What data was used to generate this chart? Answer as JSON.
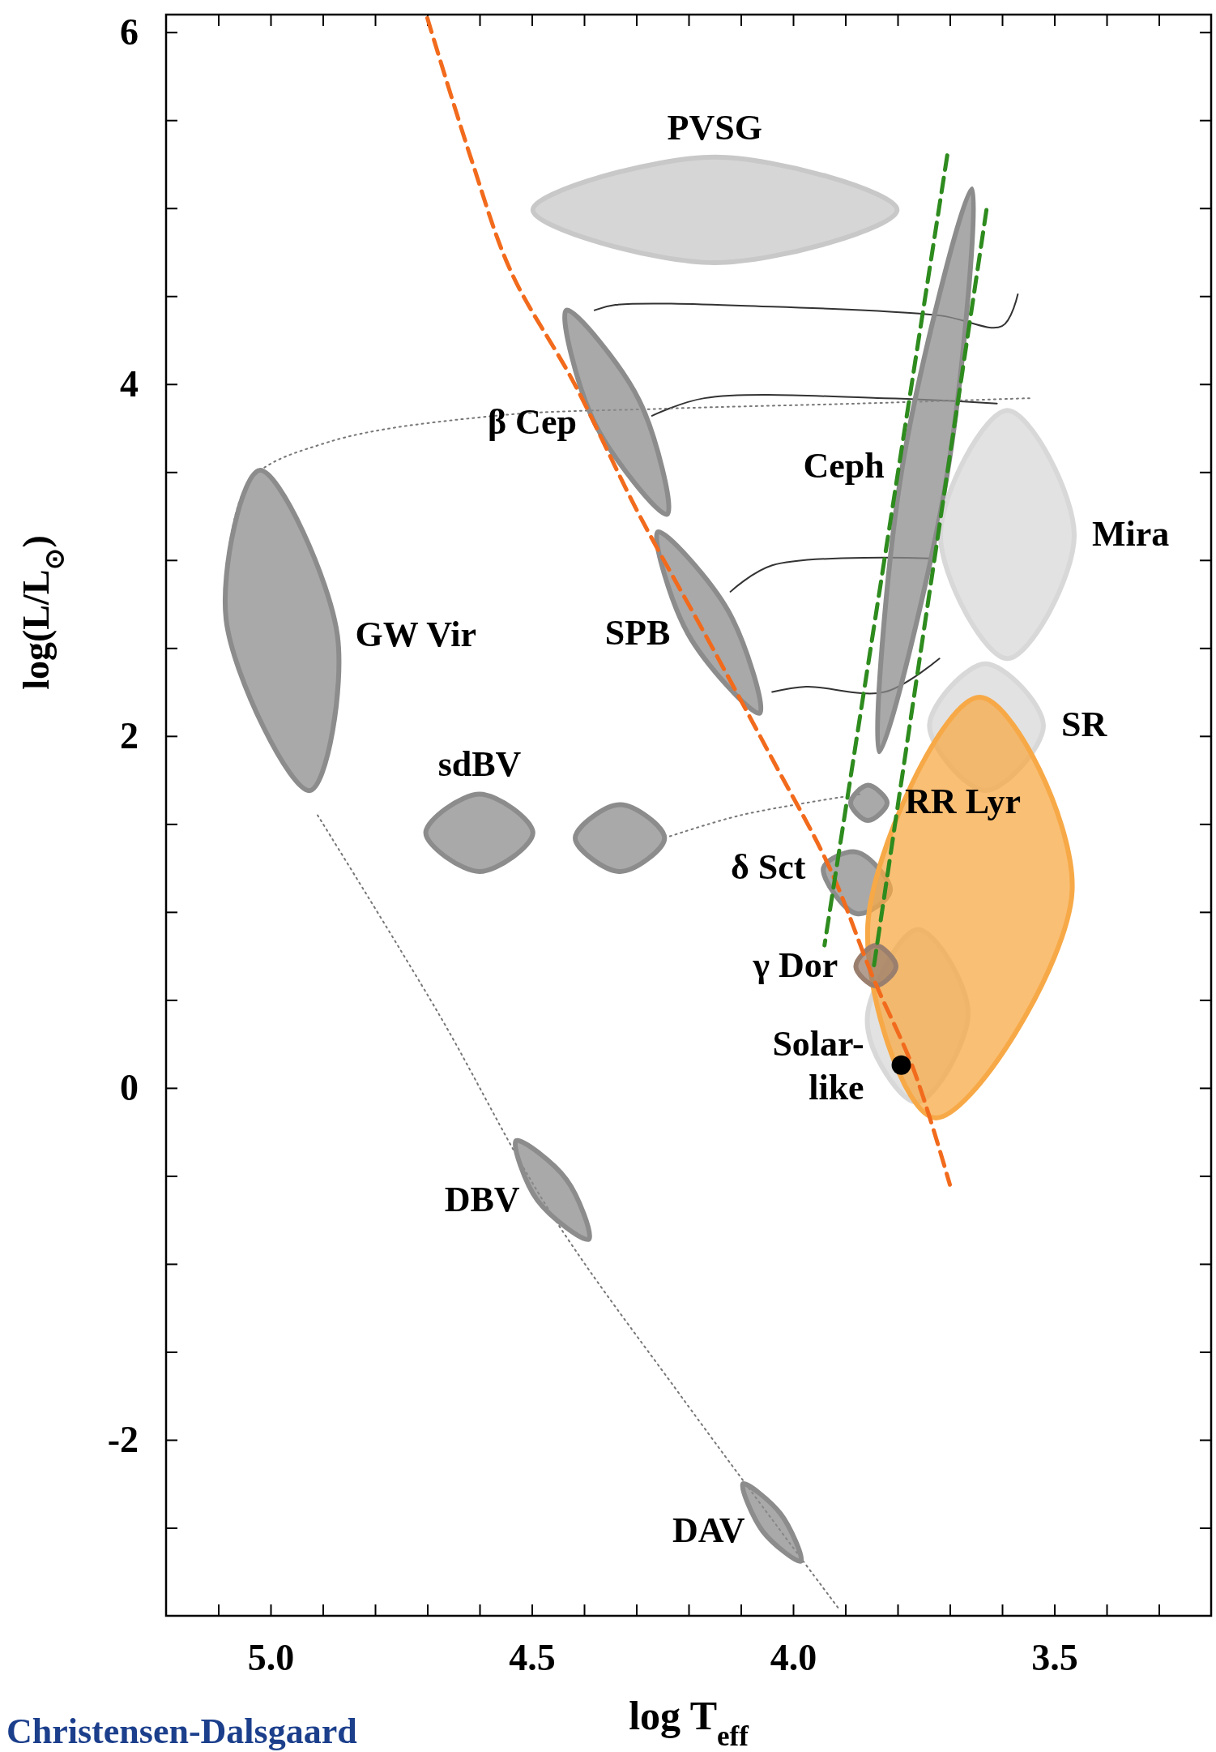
{
  "chart_data": {
    "type": "line",
    "xlabel": "log T$_{eff}$",
    "ylabel": "log(L/L$_{⊙}$)",
    "xlim": [
      5.2,
      3.2
    ],
    "ylim": [
      -3,
      6.1
    ],
    "xticks": [
      {
        "value": 5.1,
        "label": null
      },
      {
        "value": 5.0,
        "label": "5.0"
      },
      {
        "value": 4.9,
        "label": null
      },
      {
        "value": 4.8,
        "label": null
      },
      {
        "value": 4.7,
        "label": null
      },
      {
        "value": 4.6,
        "label": null
      },
      {
        "value": 4.5,
        "label": "4.5"
      },
      {
        "value": 4.4,
        "label": null
      },
      {
        "value": 4.3,
        "label": null
      },
      {
        "value": 4.2,
        "label": null
      },
      {
        "value": 4.1,
        "label": null
      },
      {
        "value": 4.0,
        "label": "4.0"
      },
      {
        "value": 3.9,
        "label": null
      },
      {
        "value": 3.8,
        "label": null
      },
      {
        "value": 3.7,
        "label": null
      },
      {
        "value": 3.6,
        "label": null
      },
      {
        "value": 3.5,
        "label": "3.5"
      },
      {
        "value": 3.4,
        "label": null
      },
      {
        "value": 3.3,
        "label": null
      }
    ],
    "yticks": [
      {
        "value": -2.5,
        "label": null
      },
      -2,
      {
        "value": -1.5,
        "label": null
      },
      {
        "value": -1,
        "label": null
      },
      {
        "value": -0.5,
        "label": null
      },
      0,
      {
        "value": 0.5,
        "label": null
      },
      {
        "value": 1,
        "label": null
      },
      {
        "value": 1.5,
        "label": null
      },
      2,
      {
        "value": 2.5,
        "label": null
      },
      {
        "value": 3,
        "label": null
      },
      {
        "value": 3.5,
        "label": null
      },
      4,
      {
        "value": 4.5,
        "label": null
      },
      {
        "value": 5,
        "label": null
      },
      {
        "value": 5.5,
        "label": null
      },
      6
    ],
    "series": [
      {
        "color": "#333333",
        "line_style": "solid",
        "x": [
          4.38,
          4.34,
          4.04,
          3.72,
          3.6,
          3.57
        ],
        "values": [
          4.42,
          4.45,
          4.44,
          4.39,
          4.33,
          4.51
        ]
      },
      {
        "color": "#333333",
        "line_style": "solid",
        "x": [
          4.27,
          4.17,
          3.825,
          3.61
        ],
        "values": [
          3.82,
          3.92,
          3.92,
          3.89
        ]
      },
      {
        "color": "#333333",
        "line_style": "solid",
        "x": [
          4.12,
          4.04,
          3.74
        ],
        "values": [
          2.82,
          2.97,
          3.01
        ]
      },
      {
        "color": "#333333",
        "line_style": "solid",
        "x": [
          4.04,
          3.975,
          3.825,
          3.72
        ],
        "values": [
          2.25,
          2.28,
          2.25,
          2.44
        ]
      },
      {
        "color": "#777777",
        "line_style": "dotted",
        "x": [
          5.085,
          5.04,
          4.89,
          4.57,
          4.25,
          3.87,
          3.547
        ],
        "values": [
          2.94,
          3.45,
          3.67,
          3.82,
          3.86,
          3.89,
          3.92
        ]
      },
      {
        "color": "#777777",
        "line_style": "dotted",
        "x": [
          4.91,
          4.68,
          4.466,
          4.21,
          3.91
        ],
        "values": [
          1.55,
          0.43,
          -0.7,
          -1.77,
          -2.97
        ]
      },
      {
        "color": "#777777",
        "line_style": "dotted",
        "x": [
          4.246,
          4.1,
          3.87
        ],
        "values": [
          1.42,
          1.55,
          1.67
        ]
      },
      {
        "type": "area",
        "color": "#c8c8c8",
        "x": [
          4.498,
          4.15,
          3.801,
          4.15
        ],
        "values": [
          4.99,
          5.29,
          4.99,
          4.69
        ]
      },
      {
        "type": "area",
        "color": "#8c8c8c",
        "x": [
          4.434,
          4.295,
          4.241,
          4.38
        ],
        "values": [
          4.42,
          3.91,
          3.26,
          3.78
        ]
      },
      {
        "type": "area",
        "color": "#8c8c8c",
        "x": [
          4.259,
          4.124,
          4.064,
          4.201
        ],
        "values": [
          3.16,
          2.71,
          2.13,
          2.58
        ]
      },
      {
        "type": "area",
        "color": "#8c8c8c",
        "x": [
          3.658,
          3.705,
          3.835,
          3.791
        ],
        "values": [
          5.11,
          3.49,
          1.91,
          3.53
        ]
      },
      {
        "type": "area",
        "color": "#d8d8d8",
        "x": [
          3.59,
          3.462,
          3.59,
          3.718
        ],
        "values": [
          3.85,
          3.14,
          2.44,
          3.14
        ]
      },
      {
        "type": "area",
        "color": "#d8d8d8",
        "x": [
          3.739,
          3.632,
          3.521,
          3.632
        ],
        "values": [
          2.06,
          2.41,
          2.06,
          1.69
        ]
      },
      {
        "type": "area",
        "color": "#8c8c8c",
        "x": [
          5.021,
          4.872,
          4.925,
          5.085
        ],
        "values": [
          3.51,
          2.57,
          1.69,
          2.66
        ]
      },
      {
        "type": "area",
        "color": "#8c8c8c",
        "x": [
          4.703,
          4.6,
          4.498,
          4.6
        ],
        "values": [
          1.45,
          1.67,
          1.45,
          1.23
        ]
      },
      {
        "type": "area",
        "color": "#8c8c8c",
        "x": [
          4.417,
          4.331,
          4.246,
          4.331
        ],
        "values": [
          1.42,
          1.61,
          1.42,
          1.23
        ]
      },
      {
        "type": "area",
        "color": "#8c8c8c",
        "x": [
          3.942,
          3.878,
          3.814,
          3.878
        ],
        "values": [
          1.25,
          1.34,
          1.12,
          0.99
        ]
      },
      {
        "type": "area",
        "color": "#d8d8d8",
        "x": [
          3.857,
          3.761,
          3.665,
          3.761,
          3.83
        ],
        "values": [
          0.43,
          0.9,
          0.43,
          -0.08,
          0.12
        ]
      },
      {
        "type": "area",
        "color": "#8c8c8c",
        "x": [
          4.53,
          4.434,
          4.391,
          4.489
        ],
        "values": [
          -0.3,
          -0.52,
          -0.86,
          -0.64
        ]
      },
      {
        "type": "area",
        "color": "#8c8c8c",
        "x": [
          4.096,
          4.024,
          3.985,
          4.058
        ],
        "values": [
          -2.25,
          -2.42,
          -2.69,
          -2.52
        ]
      },
      {
        "type": "area",
        "color": "#8c8c8c",
        "x": [
          3.89,
          3.857,
          3.82,
          3.857
        ],
        "values": [
          1.62,
          1.72,
          1.62,
          1.52
        ]
      },
      {
        "type": "area",
        "color": "#f7a947",
        "x": [
          3.643,
          3.466,
          3.729,
          3.857
        ],
        "values": [
          2.22,
          1.12,
          -0.17,
          0.93
        ]
      },
      {
        "type": "area",
        "color": "#9a7f6e",
        "x": [
          3.88,
          3.842,
          3.803,
          3.842
        ],
        "values": [
          0.69,
          0.81,
          0.69,
          0.58
        ]
      },
      {
        "color": "#f26b1d",
        "line_style": "dashed",
        "x": [
          4.7,
          4.615,
          4.54,
          4.42,
          4.295,
          4.167,
          4.04,
          3.93,
          3.846,
          3.77,
          3.7
        ],
        "values": [
          6.08,
          5.27,
          4.64,
          4.01,
          3.26,
          2.57,
          1.87,
          1.25,
          0.62,
          0.11,
          -0.55
        ]
      },
      {
        "color": "#2e8b1e",
        "line_style": "dashed",
        "x": [
          3.705,
          3.94
        ],
        "values": [
          5.3,
          0.81
        ]
      },
      {
        "color": "#2e8b1e",
        "line_style": "dashed",
        "x": [
          3.63,
          3.846
        ],
        "values": [
          4.99,
          0.68
        ]
      },
      {
        "type": "scatter",
        "color": "#000000",
        "marker": "circle",
        "x": [
          3.793
        ],
        "values": [
          0.13
        ]
      }
    ],
    "annotations": [
      {
        "text": "PVSG",
        "x": 4.15,
        "y": 5.29
      },
      {
        "text": "β Cep",
        "x": 4.38,
        "y": 3.78
      },
      {
        "text": "Ceph",
        "x": 3.791,
        "y": 3.53
      },
      {
        "text": "Mira",
        "x": 3.462,
        "y": 3.14
      },
      {
        "text": "GW Vir",
        "x": 4.872,
        "y": 2.57
      },
      {
        "text": "SPB",
        "x": 4.201,
        "y": 2.58
      },
      {
        "text": "SR",
        "x": 3.521,
        "y": 2.06
      },
      {
        "text": "sdBV",
        "x": 4.6,
        "y": 1.67
      },
      {
        "text": "RR Lyr",
        "x": 3.82,
        "y": 1.62
      },
      {
        "text": "δ Sct",
        "x": 3.942,
        "y": 1.25
      },
      {
        "text": "γ Dor",
        "x": 3.88,
        "y": 0.69
      },
      {
        "text": "Solar-like",
        "x": 3.83,
        "y": 0.12
      },
      {
        "text": "DBV",
        "x": 4.489,
        "y": -0.64
      },
      {
        "text": "DAV",
        "x": 4.058,
        "y": -2.52
      },
      "Christensen-Dalsgaard"
    ]
  }
}
